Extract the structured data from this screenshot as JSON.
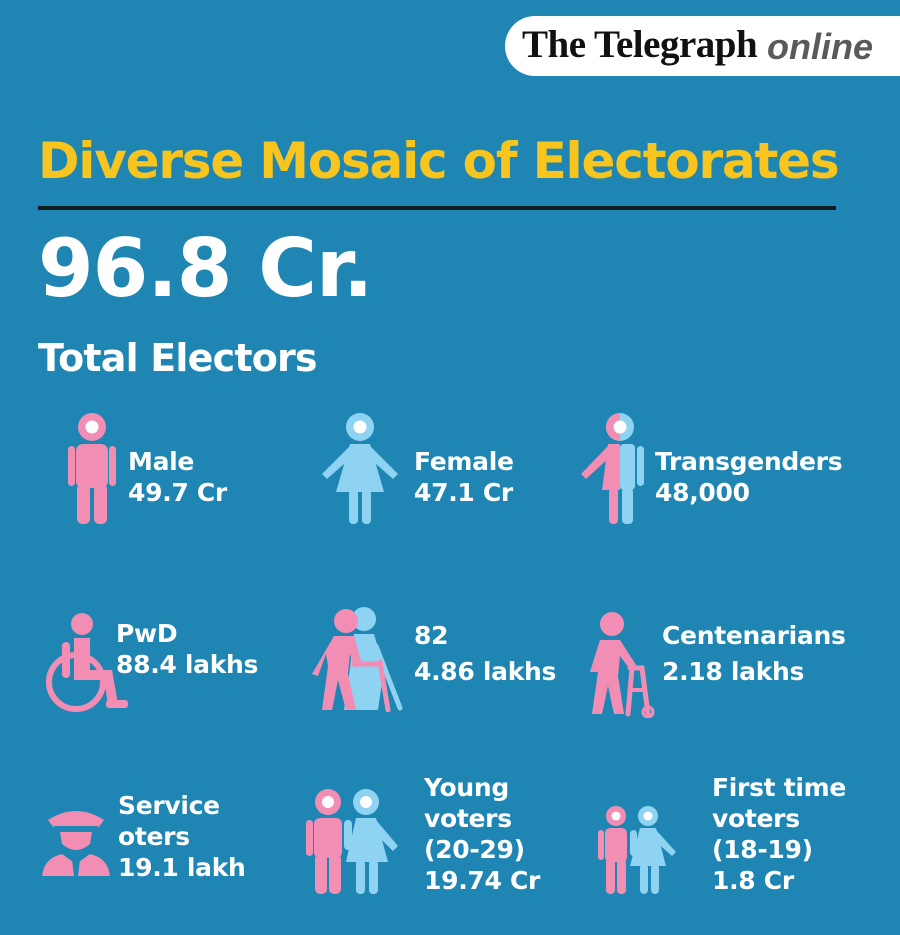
{
  "logo": {
    "main": "The Telegraph",
    "sub": "online"
  },
  "title": "Diverse Mosaic of Electorates",
  "total": {
    "value": "96.8 Cr.",
    "label": "Total Electors"
  },
  "colors": {
    "background": "#1f86b3",
    "title": "#f7c51e",
    "pink": "#f28db4",
    "blue": "#8fd3f2"
  },
  "stats": [
    {
      "icon": "male-icon",
      "lines": [
        "Male",
        "49.7 Cr"
      ]
    },
    {
      "icon": "female-icon",
      "lines": [
        "Female",
        "47.1 Cr"
      ]
    },
    {
      "icon": "transgender-icon",
      "lines": [
        "Transgenders",
        "48,000"
      ]
    },
    {
      "icon": "wheelchair-icon",
      "lines": [
        "PwD",
        "88.4 lakhs"
      ]
    },
    {
      "icon": "elderly-couple-icon",
      "lines": [
        "82",
        "4.86 lakhs"
      ]
    },
    {
      "icon": "walker-icon",
      "lines": [
        "Centenarians",
        "2.18 lakhs"
      ]
    },
    {
      "icon": "officer-icon",
      "lines": [
        "Service",
        "oters",
        "19.1 lakh"
      ]
    },
    {
      "icon": "young-couple-icon",
      "lines": [
        "Young",
        "voters",
        "(20-29)",
        "19.74 Cr"
      ]
    },
    {
      "icon": "first-time-voters-icon",
      "lines": [
        "First time",
        "voters",
        "(18-19)",
        "1.8 Cr"
      ]
    }
  ]
}
